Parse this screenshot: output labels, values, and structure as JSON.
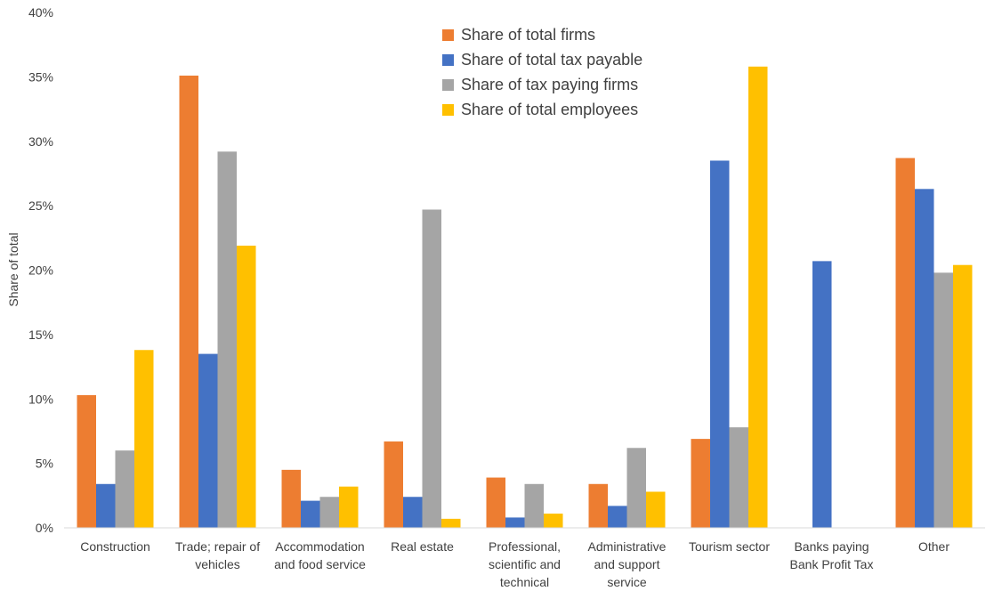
{
  "chart_data": {
    "type": "bar",
    "title": "",
    "xlabel": "",
    "ylabel": "Share of total",
    "ylim": [
      0,
      0.4
    ],
    "y_ticks": [
      0,
      0.05,
      0.1,
      0.15,
      0.2,
      0.25,
      0.3,
      0.35,
      0.4
    ],
    "y_tick_labels": [
      "0%",
      "5%",
      "10%",
      "15%",
      "20%",
      "25%",
      "30%",
      "35%",
      "40%"
    ],
    "grid": false,
    "legend_position": "top-center",
    "categories": [
      [
        "Construction"
      ],
      [
        "Trade; repair of",
        "vehicles"
      ],
      [
        "Accommodation",
        "and food service"
      ],
      [
        "Real estate"
      ],
      [
        "Professional,",
        "scientific and",
        "technical"
      ],
      [
        "Administrative",
        "and support",
        "service"
      ],
      [
        "Tourism sector"
      ],
      [
        "Banks paying",
        "Bank Profit Tax"
      ],
      [
        "Other"
      ]
    ],
    "series": [
      {
        "name": "Share of total firms",
        "color": "#ED7D31",
        "values": [
          0.103,
          0.351,
          0.045,
          0.067,
          0.039,
          0.034,
          0.069,
          null,
          0.287
        ]
      },
      {
        "name": "Share of total tax payable",
        "color": "#4472C4",
        "values": [
          0.034,
          0.135,
          0.021,
          0.024,
          0.008,
          0.017,
          0.285,
          0.207,
          0.263
        ]
      },
      {
        "name": "Share of tax paying firms",
        "color": "#A5A5A5",
        "values": [
          0.06,
          0.292,
          0.024,
          0.247,
          0.034,
          0.062,
          0.078,
          null,
          0.198
        ]
      },
      {
        "name": "Share of total employees",
        "color": "#FFC000",
        "values": [
          0.138,
          0.219,
          0.032,
          0.007,
          0.011,
          0.028,
          0.358,
          null,
          0.204
        ]
      }
    ]
  }
}
